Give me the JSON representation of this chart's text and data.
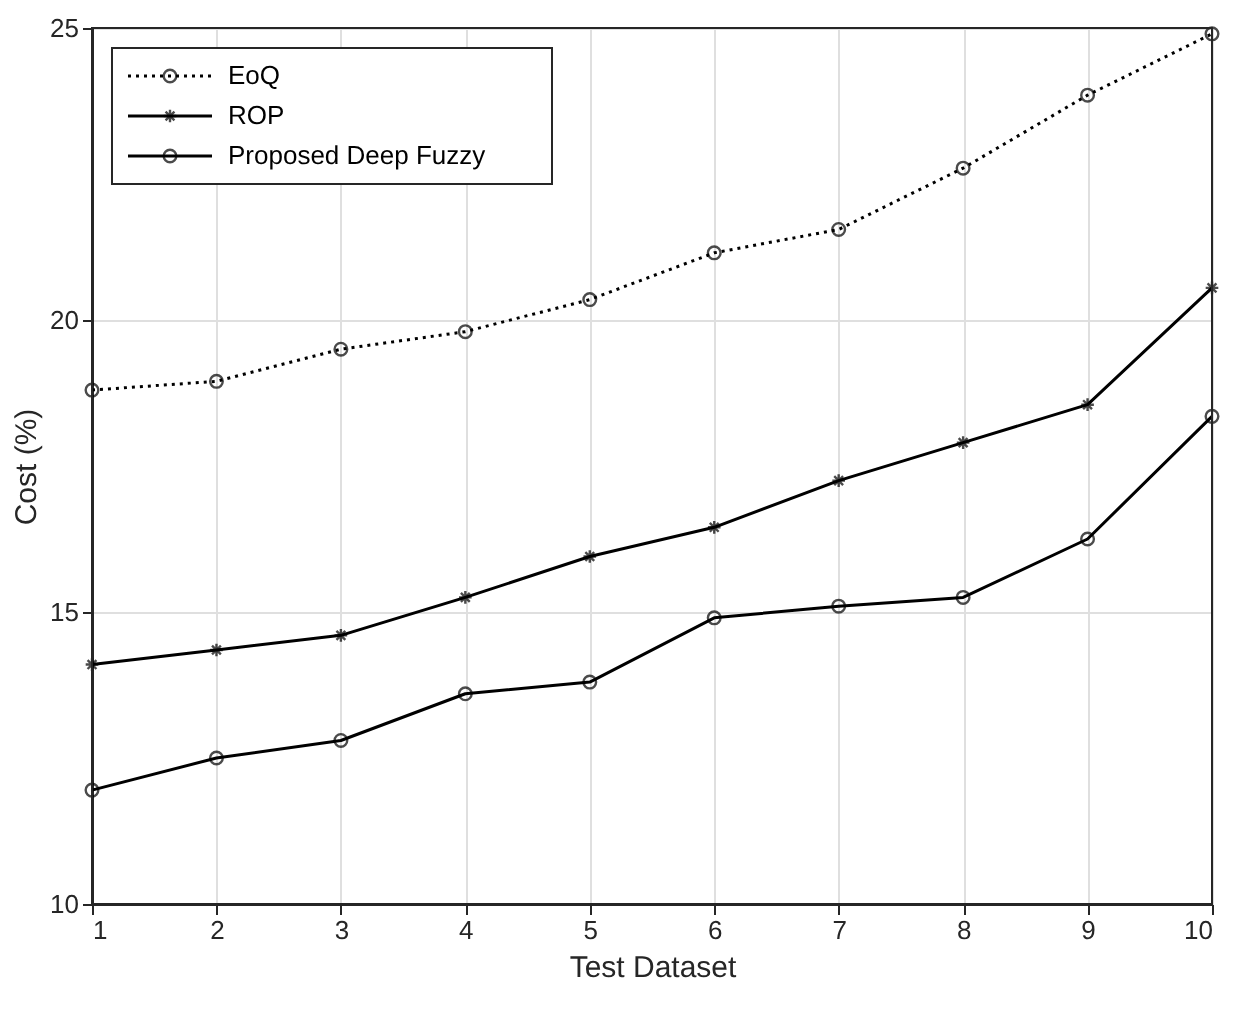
{
  "chart_data": {
    "type": "line",
    "xlabel": "Test Dataset",
    "ylabel": "Cost (%)",
    "x": [
      1,
      2,
      3,
      4,
      5,
      6,
      7,
      8,
      9,
      10
    ],
    "xlim": [
      1,
      10
    ],
    "xticks": [
      1,
      2,
      3,
      4,
      5,
      6,
      7,
      8,
      9,
      10
    ],
    "ylim": [
      10,
      25
    ],
    "yticks": [
      10,
      15,
      20,
      25
    ],
    "grid": true,
    "legend": "top left",
    "series": [
      {
        "name": "EoQ",
        "color": "#000000",
        "marker": "circle",
        "line_style": "dotted",
        "values": [
          18.8,
          18.95,
          19.5,
          19.8,
          20.35,
          21.15,
          21.55,
          22.6,
          23.85,
          24.9
        ]
      },
      {
        "name": "ROP",
        "color": "#000000",
        "marker": "cross",
        "line_style": "solid",
        "values": [
          14.1,
          14.35,
          14.6,
          15.25,
          15.95,
          16.45,
          17.25,
          17.9,
          18.55,
          20.55
        ]
      },
      {
        "name": "Proposed Deep Fuzzy",
        "color": "#000000",
        "marker": "circle",
        "line_style": "solid",
        "values": [
          11.95,
          12.5,
          12.8,
          13.6,
          13.8,
          14.9,
          15.1,
          15.25,
          16.25,
          18.35
        ]
      }
    ]
  }
}
